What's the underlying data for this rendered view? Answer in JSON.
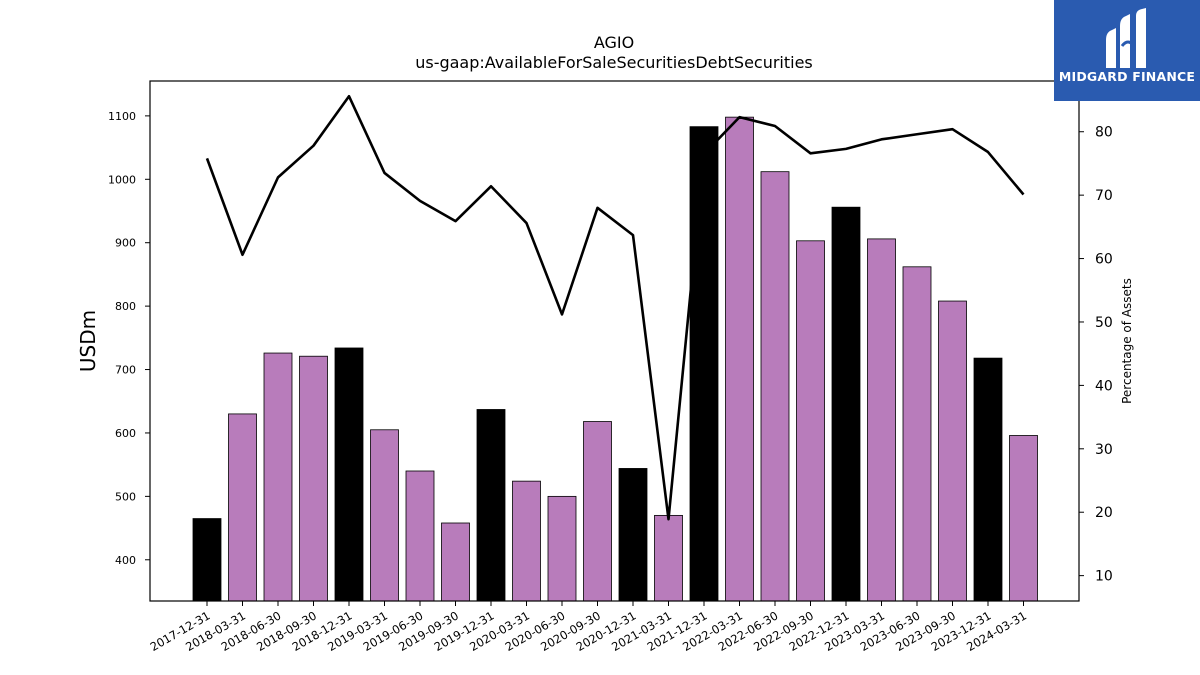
{
  "chart_data": {
    "type": "bar",
    "title": "AGIO",
    "subtitle": "us-gaap:AvailableForSaleSecuritiesDebtSecurities",
    "ylabel": "USDm",
    "y2label": "Percentage of Assets",
    "ylim": [
      335,
      1155
    ],
    "y2lim": [
      6,
      88
    ],
    "yticks": [
      400,
      500,
      600,
      700,
      800,
      900,
      1000,
      1100
    ],
    "y2ticks": [
      10,
      20,
      30,
      40,
      50,
      60,
      70,
      80
    ],
    "categories": [
      "2017-12-31",
      "2018-03-31",
      "2018-06-30",
      "2018-09-30",
      "2018-12-31",
      "2019-03-31",
      "2019-06-30",
      "2019-09-30",
      "2019-12-31",
      "2020-03-31",
      "2020-06-30",
      "2020-09-30",
      "2020-12-31",
      "2021-03-31",
      "2021-12-31",
      "2022-03-31",
      "2022-06-30",
      "2022-09-30",
      "2022-12-31",
      "2023-03-31",
      "2023-06-30",
      "2023-09-30",
      "2023-12-31",
      "2024-03-31"
    ],
    "series": [
      {
        "type": "bar",
        "values": [
          465,
          630,
          726,
          721,
          734,
          605,
          540,
          458,
          637,
          524,
          500,
          618,
          544,
          470,
          1083,
          1098,
          1012,
          903,
          956,
          906,
          862,
          808,
          718,
          596
        ],
        "colors": [
          "#000000",
          "#b87cbb",
          "#b87cbb",
          "#b87cbb",
          "#000000",
          "#b87cbb",
          "#b87cbb",
          "#b87cbb",
          "#000000",
          "#b87cbb",
          "#b87cbb",
          "#b87cbb",
          "#000000",
          "#b87cbb",
          "#000000",
          "#b87cbb",
          "#b87cbb",
          "#b87cbb",
          "#000000",
          "#b87cbb",
          "#b87cbb",
          "#b87cbb",
          "#000000",
          "#b87cbb"
        ]
      },
      {
        "type": "line",
        "axis": "right",
        "color": "#000000",
        "values": [
          75.8,
          60.6,
          72.8,
          77.8,
          85.6,
          73.5,
          69.1,
          65.9,
          71.4,
          65.6,
          51.2,
          68.0,
          63.7,
          18.9,
          76.5,
          82.3,
          80.9,
          76.6,
          77.3,
          78.8,
          79.6,
          80.4,
          76.8,
          70.1
        ]
      }
    ],
    "grid": false,
    "legend": "none"
  },
  "branding": {
    "logo_text": "MIDGARD FINANCE",
    "logo_color": "#2a5bb0"
  }
}
